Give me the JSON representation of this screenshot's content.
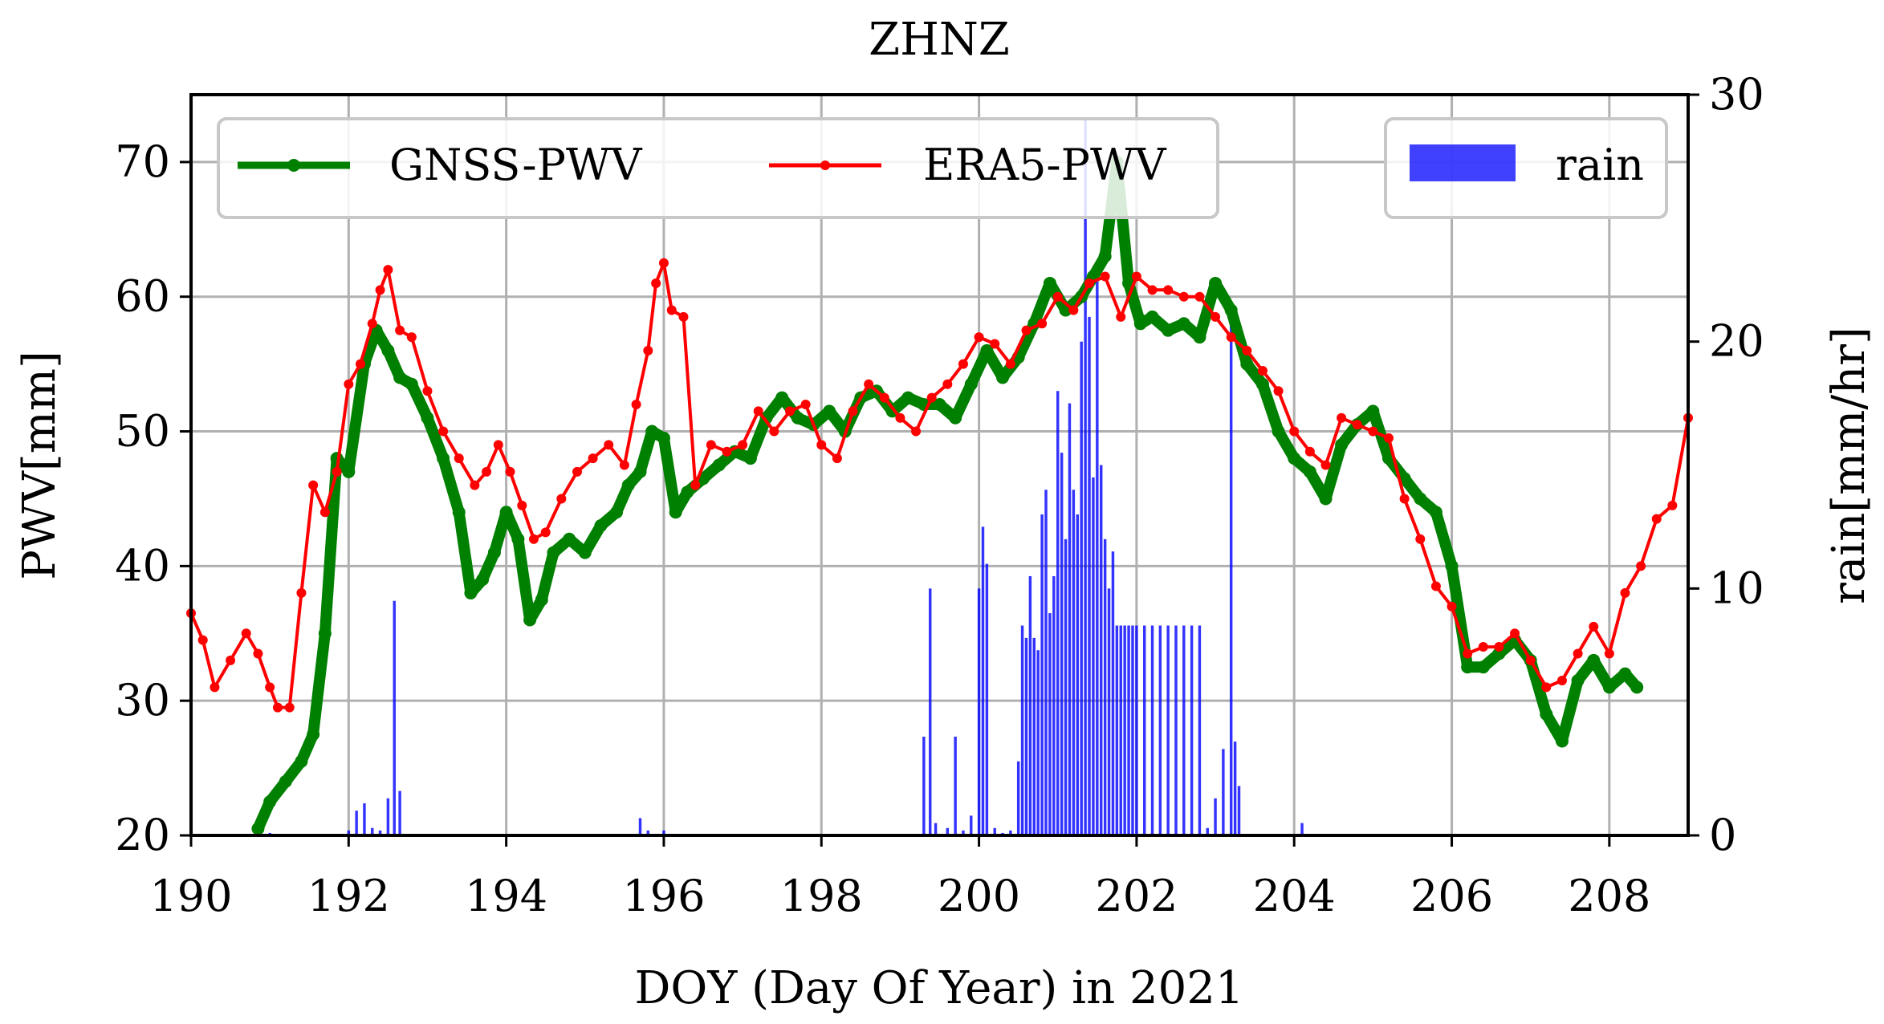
{
  "chart_data": {
    "type": "line",
    "title": "ZHNZ",
    "xlabel": "DOY (Day Of Year) in 2021",
    "ylabel": "PWV[mm]",
    "y2label": "rain[mm/hr]",
    "xlim": [
      190,
      209
    ],
    "ylim": [
      20,
      75
    ],
    "y2lim": [
      0,
      30
    ],
    "xticks": [
      190,
      192,
      194,
      196,
      198,
      200,
      202,
      204,
      206,
      208
    ],
    "yticks": [
      20,
      30,
      40,
      50,
      60,
      70
    ],
    "y2ticks": [
      0,
      10,
      20,
      30
    ],
    "grid": true,
    "legend": {
      "left": "top-left",
      "right": "top-right"
    },
    "series": [
      {
        "name": "GNSS-PWV",
        "color": "#008000",
        "axis": "left",
        "x": [
          190.85,
          191.0,
          191.2,
          191.4,
          191.55,
          191.7,
          191.85,
          192.0,
          192.2,
          192.35,
          192.5,
          192.65,
          192.8,
          193.0,
          193.2,
          193.4,
          193.55,
          193.7,
          193.85,
          194.0,
          194.15,
          194.3,
          194.45,
          194.6,
          194.8,
          195.0,
          195.2,
          195.4,
          195.55,
          195.7,
          195.85,
          196.0,
          196.15,
          196.3,
          196.5,
          196.7,
          196.9,
          197.1,
          197.3,
          197.5,
          197.7,
          197.9,
          198.1,
          198.3,
          198.5,
          198.7,
          198.9,
          199.1,
          199.3,
          199.5,
          199.7,
          199.9,
          200.1,
          200.3,
          200.5,
          200.7,
          200.9,
          201.1,
          201.3,
          201.45,
          201.6,
          201.75,
          201.9,
          202.05,
          202.2,
          202.4,
          202.6,
          202.8,
          203.0,
          203.2,
          203.4,
          203.6,
          203.8,
          204.0,
          204.2,
          204.4,
          204.6,
          204.8,
          205.0,
          205.2,
          205.4,
          205.6,
          205.8,
          206.0,
          206.2,
          206.4,
          206.6,
          206.8,
          207.0,
          207.2,
          207.4,
          207.6,
          207.8,
          208.0,
          208.2,
          208.35
        ],
        "values": [
          20.5,
          22.5,
          24.0,
          25.5,
          27.5,
          35.0,
          48.0,
          47.0,
          55.0,
          57.5,
          56.0,
          54.0,
          53.5,
          51.0,
          48.0,
          44.0,
          38.0,
          39.0,
          41.0,
          44.0,
          42.0,
          36.0,
          37.5,
          41.0,
          42.0,
          41.0,
          43.0,
          44.0,
          46.0,
          47.0,
          50.0,
          49.5,
          44.0,
          45.5,
          46.5,
          47.5,
          48.5,
          48.0,
          51.0,
          52.5,
          51.0,
          50.5,
          51.5,
          50.0,
          52.5,
          53.0,
          51.5,
          52.5,
          52.0,
          52.0,
          51.0,
          53.5,
          56.0,
          54.0,
          55.5,
          58.0,
          61.0,
          59.0,
          60.0,
          61.5,
          63.0,
          70.0,
          61.0,
          58.0,
          58.5,
          57.5,
          58.0,
          57.0,
          61.0,
          59.0,
          55.0,
          53.5,
          50.0,
          48.0,
          47.0,
          45.0,
          49.0,
          50.5,
          51.5,
          48.0,
          46.5,
          45.0,
          44.0,
          40.0,
          32.5,
          32.5,
          33.5,
          34.5,
          33.0,
          29.0,
          27.0,
          31.5,
          33.0,
          31.0,
          32.0,
          31.0
        ]
      },
      {
        "name": "ERA5-PWV",
        "color": "#ff0000",
        "axis": "left",
        "x": [
          190.0,
          190.15,
          190.3,
          190.5,
          190.7,
          190.85,
          191.0,
          191.1,
          191.25,
          191.4,
          191.55,
          191.7,
          191.85,
          192.0,
          192.15,
          192.3,
          192.4,
          192.5,
          192.65,
          192.8,
          193.0,
          193.2,
          193.4,
          193.6,
          193.75,
          193.9,
          194.05,
          194.2,
          194.35,
          194.5,
          194.7,
          194.9,
          195.1,
          195.3,
          195.5,
          195.65,
          195.8,
          195.9,
          196.0,
          196.1,
          196.25,
          196.4,
          196.6,
          196.8,
          197.0,
          197.2,
          197.4,
          197.6,
          197.8,
          198.0,
          198.2,
          198.4,
          198.6,
          198.8,
          199.0,
          199.2,
          199.4,
          199.6,
          199.8,
          200.0,
          200.2,
          200.4,
          200.6,
          200.8,
          201.0,
          201.2,
          201.4,
          201.6,
          201.8,
          202.0,
          202.2,
          202.4,
          202.6,
          202.8,
          203.0,
          203.2,
          203.4,
          203.6,
          203.8,
          204.0,
          204.2,
          204.4,
          204.6,
          204.8,
          205.0,
          205.2,
          205.4,
          205.6,
          205.8,
          206.0,
          206.2,
          206.4,
          206.6,
          206.8,
          207.0,
          207.2,
          207.4,
          207.6,
          207.8,
          208.0,
          208.2,
          208.4,
          208.6,
          208.8,
          209.0
        ],
        "values": [
          36.5,
          34.5,
          31.0,
          33.0,
          35.0,
          33.5,
          31.0,
          29.5,
          29.5,
          38.0,
          46.0,
          44.0,
          47.0,
          53.5,
          55.0,
          58.0,
          60.5,
          62.0,
          57.5,
          57.0,
          53.0,
          50.0,
          48.0,
          46.0,
          47.0,
          49.0,
          47.0,
          44.5,
          42.0,
          42.5,
          45.0,
          47.0,
          48.0,
          49.0,
          47.5,
          52.0,
          56.0,
          61.0,
          62.5,
          59.0,
          58.5,
          46.0,
          49.0,
          48.5,
          49.0,
          51.5,
          50.0,
          51.5,
          52.0,
          49.0,
          48.0,
          51.5,
          53.5,
          52.5,
          51.0,
          50.0,
          52.5,
          53.5,
          55.0,
          57.0,
          56.5,
          55.0,
          57.5,
          58.0,
          60.0,
          59.0,
          61.0,
          61.5,
          58.5,
          61.5,
          60.5,
          60.5,
          60.0,
          60.0,
          58.5,
          57.0,
          56.0,
          54.5,
          53.0,
          50.0,
          48.5,
          47.5,
          51.0,
          50.5,
          50.0,
          49.5,
          45.0,
          42.0,
          38.5,
          37.0,
          33.5,
          34.0,
          34.0,
          35.0,
          33.0,
          31.0,
          31.5,
          33.5,
          35.5,
          33.5,
          38.0,
          40.0,
          43.5,
          44.5,
          51.0
        ]
      },
      {
        "name": "rain",
        "type": "bar",
        "color": "#0000ff",
        "axis": "right",
        "x": [
          190.85,
          191.0,
          192.0,
          192.1,
          192.2,
          192.3,
          192.4,
          192.5,
          192.58,
          192.65,
          195.7,
          195.8,
          196.0,
          199.3,
          199.38,
          199.45,
          199.6,
          199.7,
          199.8,
          199.9,
          200.0,
          200.05,
          200.1,
          200.2,
          200.3,
          200.4,
          200.5,
          200.55,
          200.6,
          200.65,
          200.7,
          200.75,
          200.8,
          200.85,
          200.9,
          200.95,
          201.0,
          201.05,
          201.1,
          201.15,
          201.2,
          201.25,
          201.3,
          201.35,
          201.4,
          201.45,
          201.5,
          201.55,
          201.6,
          201.65,
          201.7,
          201.75,
          201.8,
          201.85,
          201.9,
          201.95,
          202.0,
          202.1,
          202.2,
          202.3,
          202.4,
          202.5,
          202.6,
          202.7,
          202.8,
          202.9,
          203.0,
          203.1,
          203.2,
          203.25,
          203.3,
          204.1
        ],
        "values": [
          0.2,
          0.1,
          0.2,
          1.0,
          1.3,
          0.3,
          0.2,
          1.5,
          9.5,
          1.8,
          0.7,
          0.2,
          0.2,
          4.0,
          10.0,
          0.5,
          0.3,
          4.0,
          0.2,
          0.8,
          10.0,
          12.5,
          11.0,
          0.3,
          0.1,
          0.2,
          3.0,
          8.5,
          8.0,
          10.5,
          8.0,
          7.5,
          13.0,
          14.0,
          9.0,
          10.5,
          18.0,
          15.5,
          12.0,
          17.5,
          14.0,
          13.0,
          20.0,
          29.0,
          21.0,
          14.5,
          23.0,
          15.0,
          12.0,
          10.0,
          11.5,
          8.5,
          8.5,
          8.5,
          8.5,
          8.5,
          8.5,
          8.5,
          8.5,
          8.5,
          8.5,
          8.5,
          8.5,
          8.5,
          8.5,
          0.3,
          1.5,
          3.5,
          21.5,
          3.8,
          2.0,
          0.5
        ]
      }
    ]
  }
}
